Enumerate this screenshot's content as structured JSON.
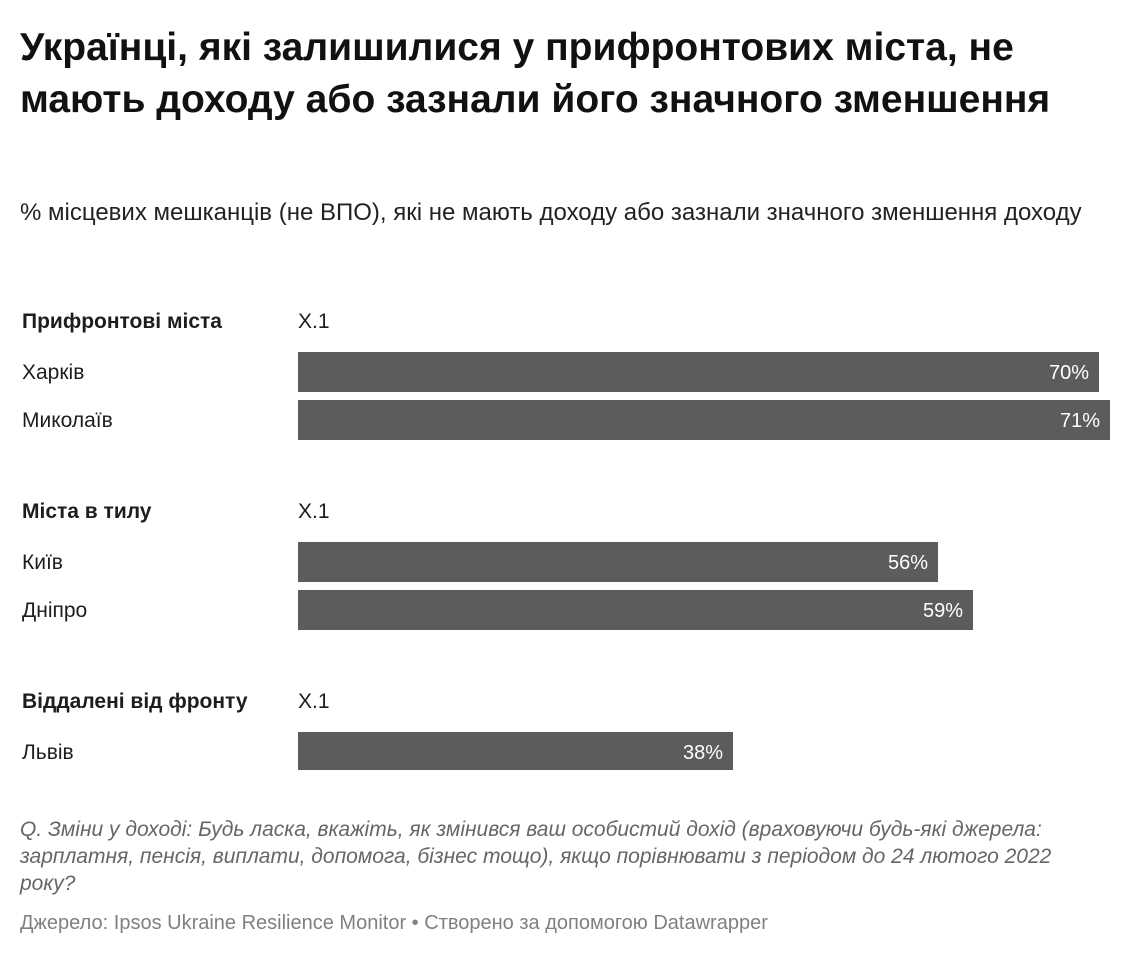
{
  "header": {
    "title": "Українці, які залишилися у прифронтових міста, не мають доходу або зазнали його значного зменшення",
    "subtitle": "% місцевих мешканців (не ВПО), які не мають доходу або зазнали значного зменшення доходу"
  },
  "chart_data": {
    "type": "bar",
    "orientation": "horizontal",
    "column_label": "X.1",
    "xlim": [
      0,
      71
    ],
    "unit": "%",
    "bar_color": "#5c5c5c",
    "groups": [
      {
        "name": "Прифронтові міста",
        "items": [
          {
            "label": "Харків",
            "value": 70
          },
          {
            "label": "Миколаїв",
            "value": 71
          }
        ]
      },
      {
        "name": "Міста в тилу",
        "items": [
          {
            "label": "Київ",
            "value": 56
          },
          {
            "label": "Дніпро",
            "value": 59
          }
        ]
      },
      {
        "name": "Віддалені від фронту",
        "items": [
          {
            "label": "Львів",
            "value": 38
          }
        ]
      }
    ]
  },
  "footer": {
    "notes": "Q. Зміни у доході: Будь ласка, вкажіть, як змінився ваш особистий дохід (враховуючи будь-які джерела: зарплатня, пенсія, виплати, допомога, бізнес тощо), якщо порівнювати з періодом до 24 лютого 2022 року?",
    "source_label": "Джерело:",
    "source_name": "Ipsos Ukraine Resilience Monitor",
    "separator": "•",
    "credit": "Створено за допомогою Datawrapper"
  }
}
